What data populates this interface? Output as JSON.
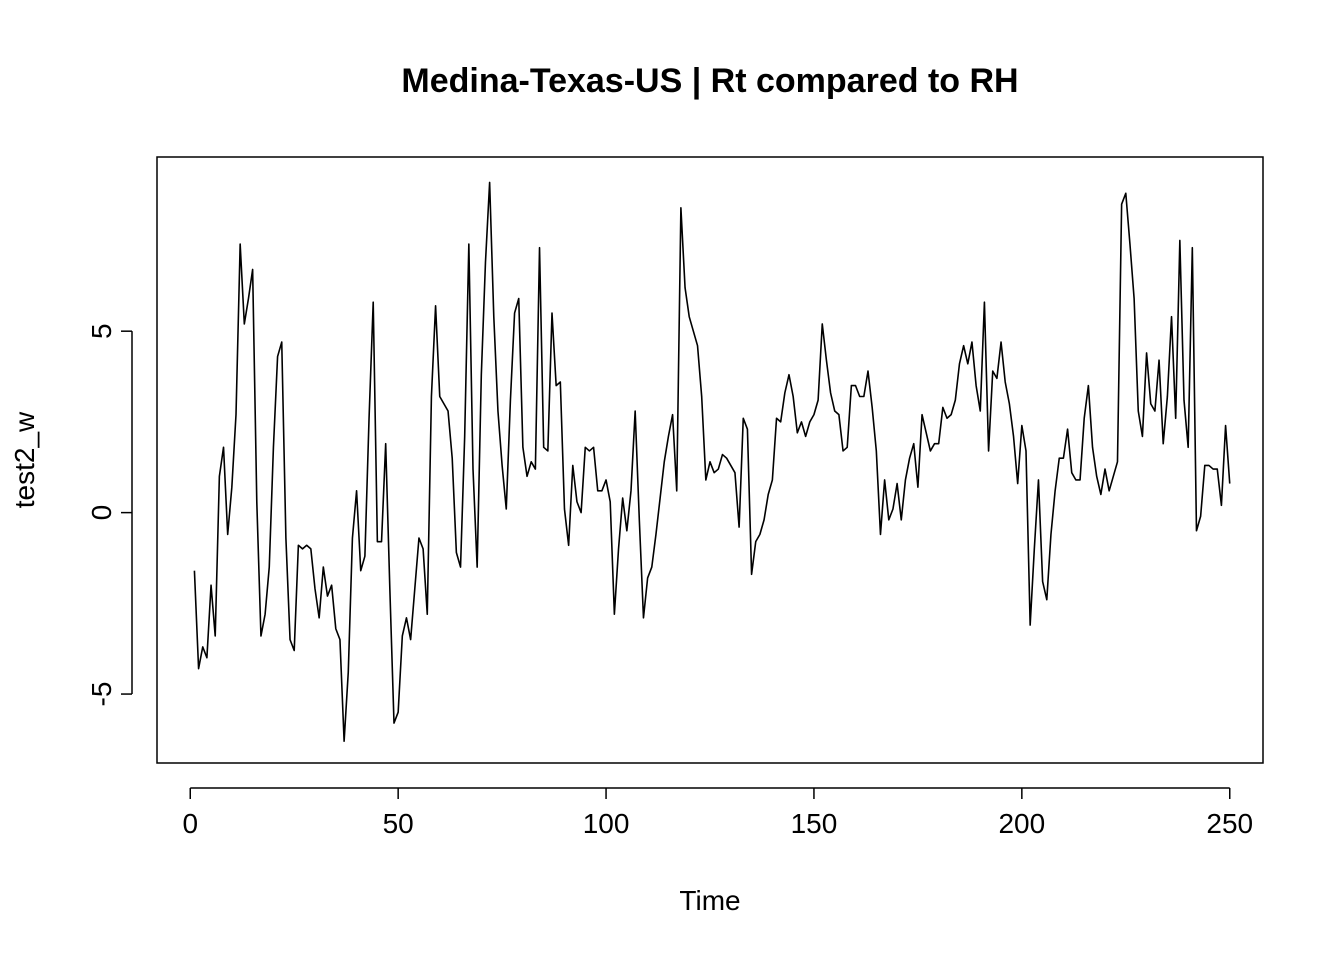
{
  "chart_data": {
    "type": "line",
    "title": "Medina-Texas-US | Rt compared to RH",
    "xlabel": "Time",
    "ylabel": "test2_w",
    "xlim": [
      -8,
      258
    ],
    "ylim": [
      -6.9,
      9.8
    ],
    "xticks": [
      0,
      50,
      100,
      150,
      200,
      250
    ],
    "xtick_labels": [
      "0",
      "50",
      "100",
      "150",
      "200",
      "250"
    ],
    "yticks": [
      -5,
      0,
      5
    ],
    "ytick_labels": [
      "-5",
      "0",
      "5"
    ],
    "grid": false,
    "line_color": "#000000",
    "series": [
      {
        "x_start": 1,
        "values": [
          -1.6,
          -4.3,
          -3.7,
          -4.0,
          -2.0,
          -3.4,
          1.0,
          1.8,
          -0.6,
          0.7,
          2.7,
          7.4,
          5.2,
          5.9,
          6.7,
          0.3,
          -3.4,
          -2.8,
          -1.5,
          1.8,
          4.3,
          4.7,
          -0.7,
          -3.5,
          -3.8,
          -0.9,
          -1.0,
          -0.9,
          -1.0,
          -2.1,
          -2.9,
          -1.5,
          -2.3,
          -2.0,
          -3.2,
          -3.5,
          -6.3,
          -4.4,
          -0.7,
          0.6,
          -1.6,
          -1.2,
          2.6,
          5.8,
          -0.8,
          -0.8,
          1.9,
          -2.1,
          -5.8,
          -5.5,
          -3.4,
          -2.9,
          -3.5,
          -2.1,
          -0.7,
          -1.0,
          -2.8,
          3.2,
          5.7,
          3.2,
          3.0,
          2.8,
          1.5,
          -1.1,
          -1.5,
          2.1,
          7.4,
          1.2,
          -1.5,
          3.8,
          6.9,
          9.1,
          5.4,
          2.8,
          1.3,
          0.1,
          3.1,
          5.5,
          5.9,
          1.8,
          1.0,
          1.4,
          1.2,
          7.3,
          1.8,
          1.7,
          5.5,
          3.5,
          3.6,
          0.1,
          -0.9,
          1.3,
          0.3,
          0.0,
          1.8,
          1.7,
          1.8,
          0.6,
          0.6,
          0.9,
          0.3,
          -2.8,
          -1.0,
          0.4,
          -0.5,
          0.6,
          2.8,
          -0.2,
          -2.9,
          -1.8,
          -1.5,
          -0.6,
          0.4,
          1.4,
          2.1,
          2.7,
          0.6,
          8.4,
          6.2,
          5.4,
          5.0,
          4.6,
          3.2,
          0.9,
          1.4,
          1.1,
          1.2,
          1.6,
          1.5,
          1.3,
          1.1,
          -0.4,
          2.6,
          2.3,
          -1.7,
          -0.8,
          -0.6,
          -0.2,
          0.5,
          0.9,
          2.6,
          2.5,
          3.3,
          3.8,
          3.2,
          2.2,
          2.5,
          2.1,
          2.5,
          2.7,
          3.1,
          5.2,
          4.2,
          3.3,
          2.8,
          2.7,
          1.7,
          1.8,
          3.5,
          3.5,
          3.2,
          3.2,
          3.9,
          2.9,
          1.7,
          -0.6,
          0.9,
          -0.2,
          0.1,
          0.8,
          -0.2,
          0.9,
          1.5,
          1.9,
          0.7,
          2.7,
          2.2,
          1.7,
          1.9,
          1.9,
          2.9,
          2.6,
          2.7,
          3.1,
          4.1,
          4.6,
          4.1,
          4.7,
          3.5,
          2.8,
          5.8,
          1.7,
          3.9,
          3.7,
          4.7,
          3.6,
          3.0,
          2.1,
          0.8,
          2.4,
          1.7,
          -3.1,
          -1.0,
          0.9,
          -1.9,
          -2.4,
          -0.6,
          0.6,
          1.5,
          1.5,
          2.3,
          1.1,
          0.9,
          0.9,
          2.6,
          3.5,
          1.8,
          1.0,
          0.5,
          1.2,
          0.6,
          1.0,
          1.4,
          8.5,
          8.8,
          7.4,
          5.9,
          2.8,
          2.1,
          4.4,
          3.0,
          2.8,
          4.2,
          1.9,
          3.2,
          5.4,
          2.6,
          7.5,
          3.1,
          1.8,
          7.3,
          -0.5,
          -0.1,
          1.3,
          1.3,
          1.2,
          1.2,
          0.2,
          2.4,
          0.8
        ]
      }
    ]
  }
}
